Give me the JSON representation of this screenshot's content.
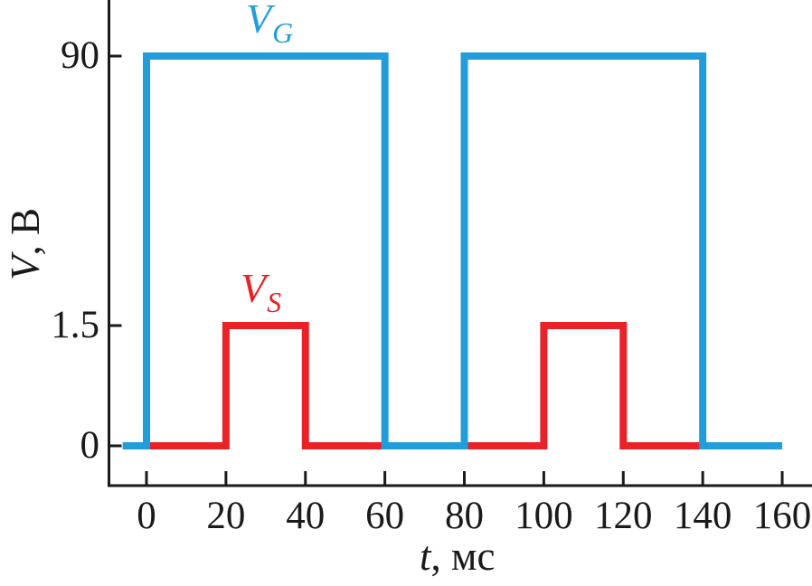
{
  "chart_data": {
    "type": "line",
    "subtype": "square-wave-timing-diagram",
    "title": "",
    "xlabel": "t, мс",
    "xlabel_var": "t",
    "xlabel_unit": ", мс",
    "ylabel": "V, В",
    "ylabel_var": "V",
    "ylabel_unit": ", В",
    "x_ticks": [
      "0",
      "20",
      "40",
      "60",
      "80",
      "100",
      "120",
      "140",
      "160"
    ],
    "y_ticks": [
      "90",
      "1.5",
      "0"
    ],
    "x_range_ms": [
      0,
      160
    ],
    "y_levels_v": [
      0,
      1.5,
      90
    ],
    "axis_note": "y-axis is schematic/nonlinear: levels 0, 1.5 and 90 В are not to scale",
    "grid": "off",
    "legend": "inline labels above each waveform",
    "axis_color": "#1a1a1a",
    "series": [
      {
        "name": "V_S",
        "label_main": "V",
        "label_sub": "S",
        "color": "#ea2127",
        "amplitude_v": 1.5,
        "points": [
          [
            0,
            0
          ],
          [
            20,
            0
          ],
          [
            20,
            1.5
          ],
          [
            40,
            1.5
          ],
          [
            40,
            0
          ],
          [
            100,
            0
          ],
          [
            100,
            1.5
          ],
          [
            120,
            1.5
          ],
          [
            120,
            0
          ],
          [
            140,
            0
          ]
        ]
      },
      {
        "name": "V_G",
        "label_main": "V",
        "label_sub": "G",
        "color": "#219ed9",
        "amplitude_v": 90,
        "points": [
          [
            -6,
            0
          ],
          [
            0,
            0
          ],
          [
            0,
            90
          ],
          [
            60,
            90
          ],
          [
            60,
            0
          ],
          [
            80,
            0
          ],
          [
            80,
            90
          ],
          [
            140,
            90
          ],
          [
            140,
            0
          ],
          [
            160,
            0
          ]
        ]
      }
    ]
  }
}
